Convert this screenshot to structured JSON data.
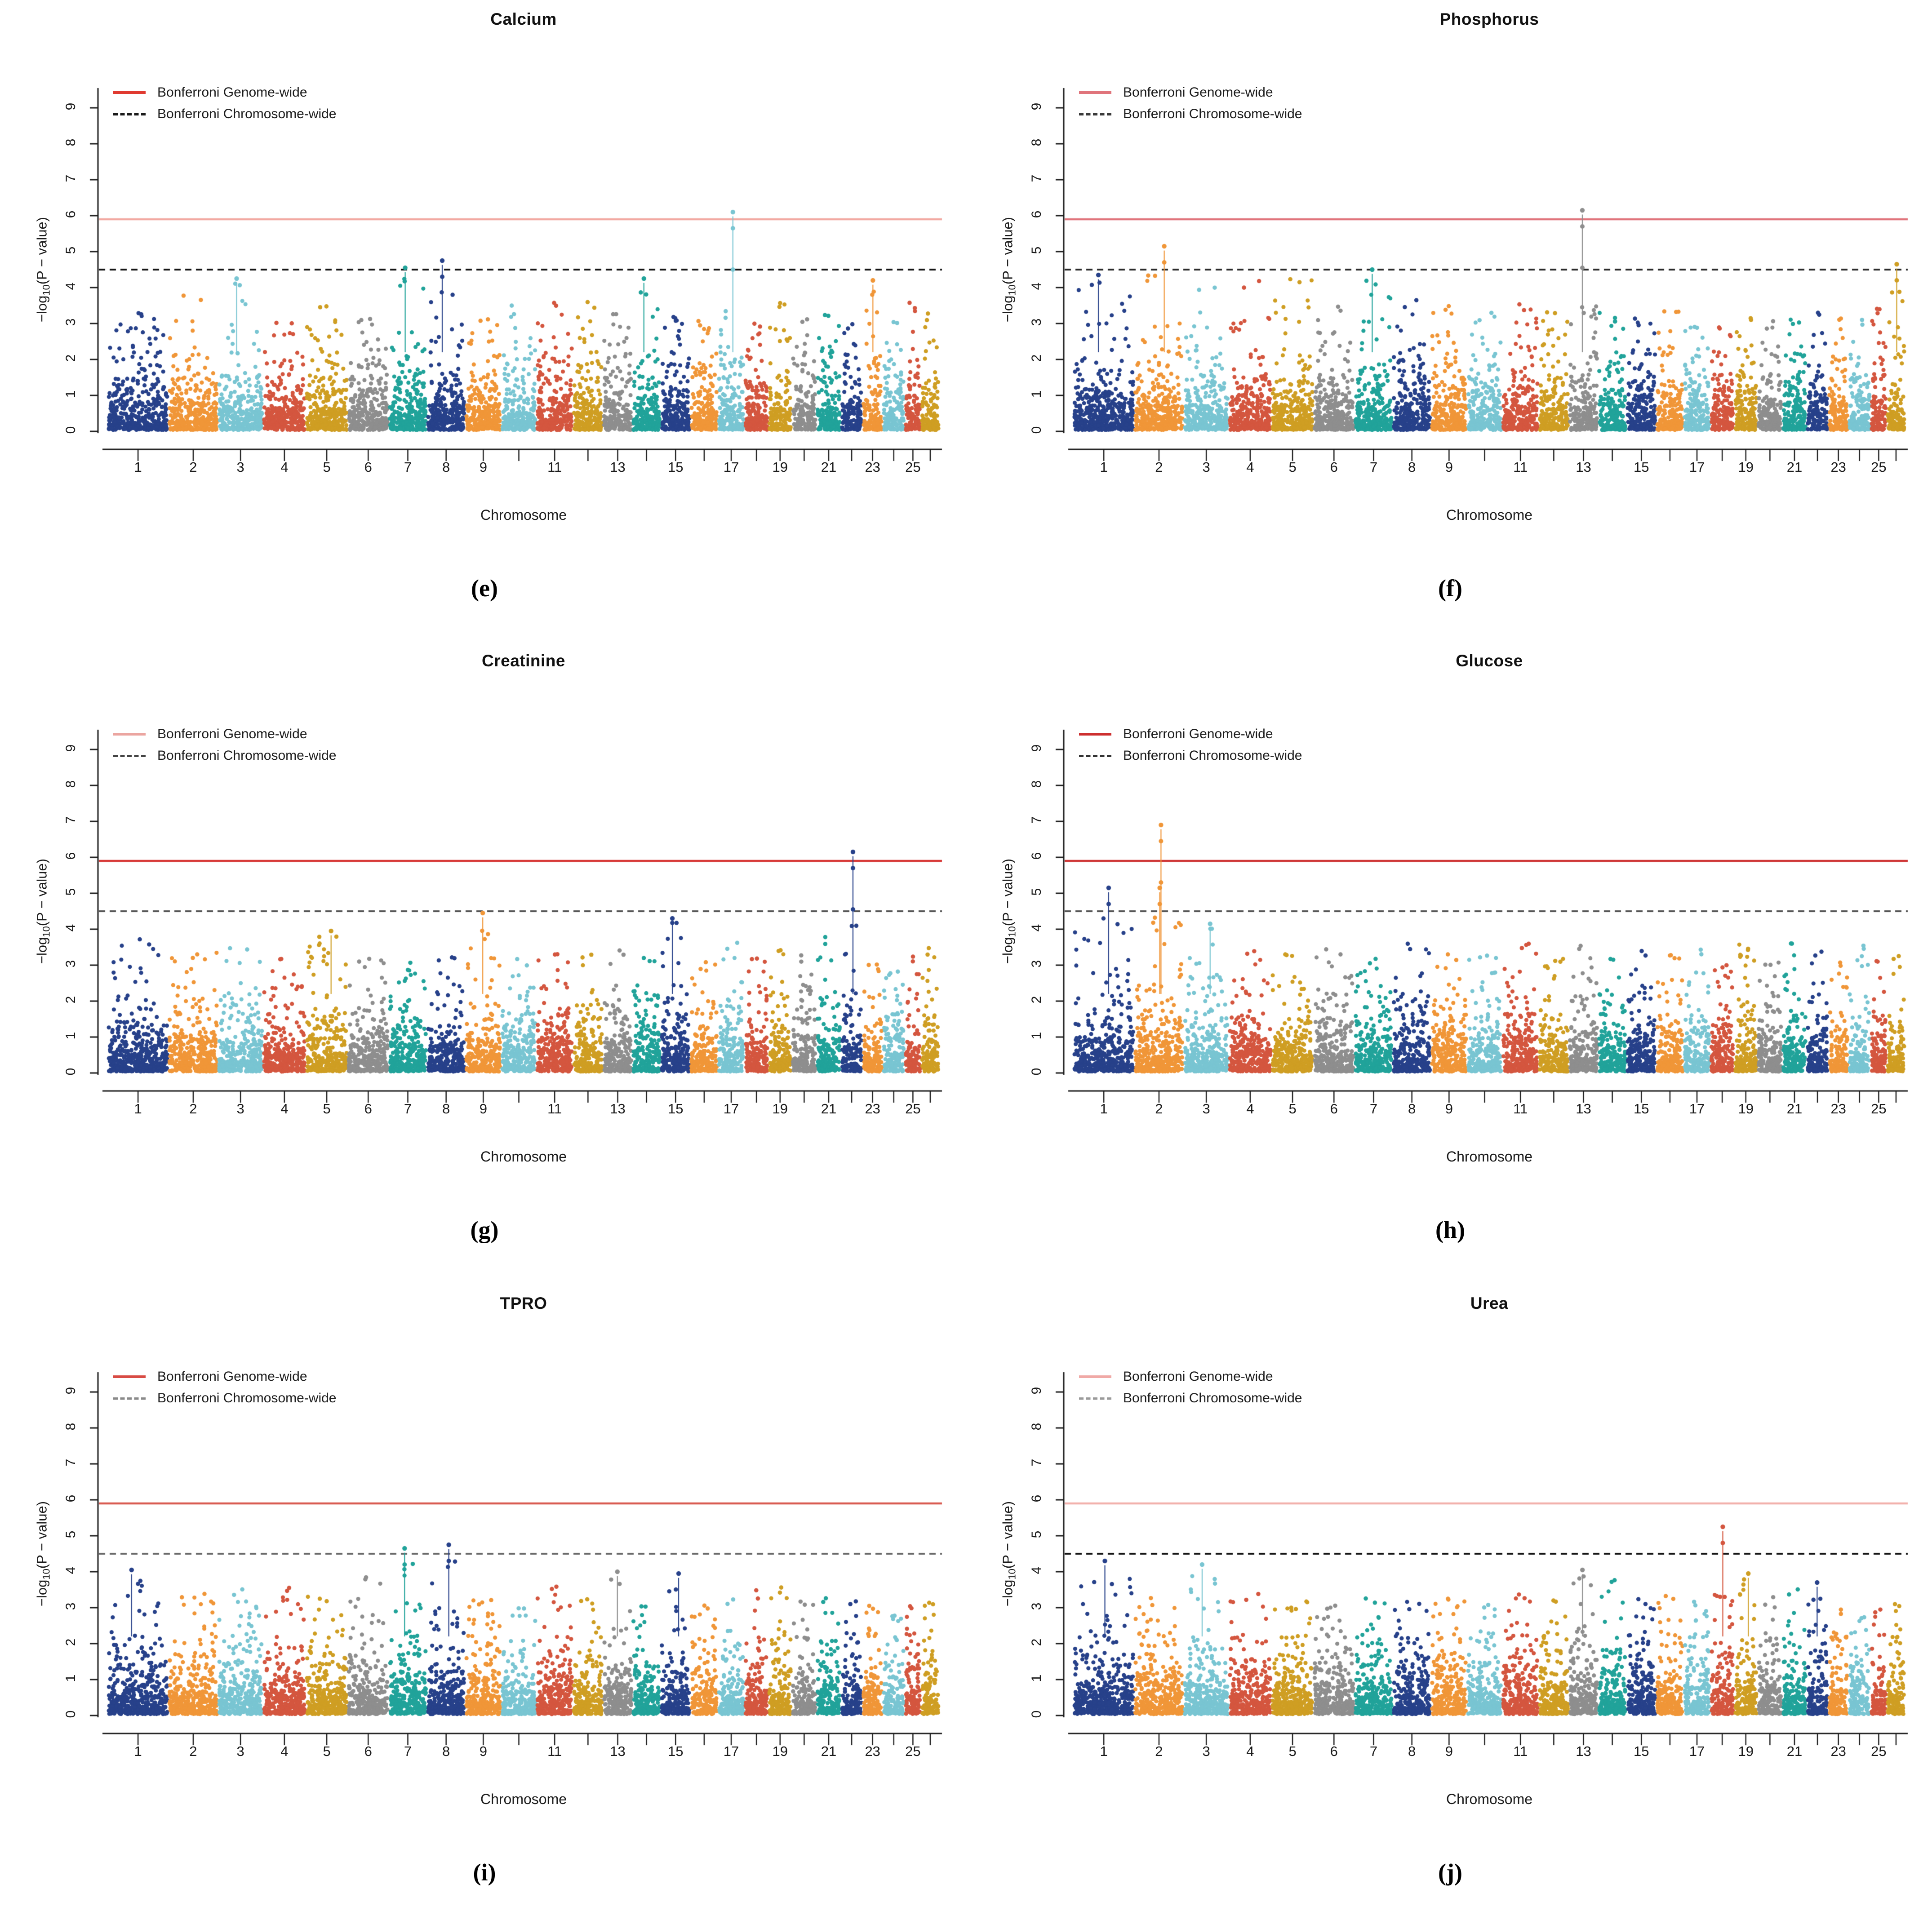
{
  "figure": {
    "legend": {
      "genome_label": "Bonferroni Genome-wide",
      "chromosome_label": "Bonferroni Chromosome-wide"
    },
    "ylabel_prefix": "−log",
    "ylabel_sub": "10",
    "ylabel_suffix": "(P − value)",
    "xlabel": "Chromosome",
    "ytick_labels": [
      "0",
      "1",
      "2",
      "3",
      "4",
      "5",
      "6",
      "7",
      "8",
      "9"
    ],
    "xtick_values": [
      1,
      2,
      3,
      4,
      5,
      6,
      7,
      8,
      9,
      11,
      13,
      15,
      17,
      19,
      21,
      23,
      25
    ],
    "chrom_palette": [
      "#27418a",
      "#f09638",
      "#79c5d2",
      "#d4563f",
      "#cf9e23",
      "#8e8e8e",
      "#21a39a"
    ],
    "chrom_weights": [
      1.3,
      1.05,
      0.95,
      0.9,
      0.88,
      0.86,
      0.8,
      0.8,
      0.75,
      0.73,
      0.76,
      0.62,
      0.6,
      0.58,
      0.61,
      0.56,
      0.54,
      0.48,
      0.47,
      0.5,
      0.49,
      0.43,
      0.4,
      0.44,
      0.31,
      0.36
    ]
  },
  "plots": [
    {
      "id": "e",
      "title": "Calcium",
      "letter": "(e)"
    },
    {
      "id": "f",
      "title": "Phosphorus",
      "letter": "(f)"
    },
    {
      "id": "g",
      "title": "Creatinine",
      "letter": "(g)"
    },
    {
      "id": "h",
      "title": "Glucose",
      "letter": "(h)"
    },
    {
      "id": "i",
      "title": "TPRO",
      "letter": "(i)"
    },
    {
      "id": "j",
      "title": "Urea",
      "letter": "(j)"
    }
  ],
  "chart_data": [
    {
      "type": "scatter",
      "subtype": "manhattan",
      "title": "Calcium",
      "xlabel": "Chromosome",
      "ylabel": "-log10(P-value)",
      "ylim": [
        0,
        9.8
      ],
      "yticks": [
        0,
        1,
        2,
        3,
        4,
        5,
        6,
        7,
        8,
        9
      ],
      "n_chromosomes": 26,
      "genome_wide_threshold": 5.9,
      "chromosome_wide_threshold": 4.5,
      "line_colors": {
        "genome": "#f2a9a2",
        "chromosome": "#151515"
      },
      "legend_colors": {
        "genome": "#e03a30",
        "chromosome": "#1a1a1a"
      },
      "base_max": [
        3.4,
        3.9,
        4.2,
        3.2,
        3.5,
        3.3,
        4.3,
        4.0,
        3.3,
        3.5,
        3.7,
        3.6,
        3.4,
        4.0,
        3.3,
        3.1,
        3.4,
        3.0,
        3.6,
        3.2,
        3.3,
        3.0,
        3.9,
        3.1,
        3.6,
        3.3
      ],
      "highlights": [
        [
          3,
          4.25
        ],
        [
          7,
          4.55
        ],
        [
          8,
          4.75
        ],
        [
          14,
          4.25
        ],
        [
          17,
          6.1
        ],
        [
          23,
          4.2
        ]
      ]
    },
    {
      "type": "scatter",
      "subtype": "manhattan",
      "title": "Phosphorus",
      "xlabel": "Chromosome",
      "ylabel": "-log10(P-value)",
      "ylim": [
        0,
        9.8
      ],
      "yticks": [
        0,
        1,
        2,
        3,
        4,
        5,
        6,
        7,
        8,
        9
      ],
      "n_chromosomes": 26,
      "genome_wide_threshold": 5.9,
      "chromosome_wide_threshold": 4.5,
      "line_colors": {
        "genome": "#e0747b",
        "chromosome": "#2b2b2b"
      },
      "legend_colors": {
        "genome": "#e0747b",
        "chromosome": "#3a3a3a"
      },
      "base_max": [
        4.2,
        4.4,
        4.1,
        4.2,
        4.3,
        3.6,
        4.3,
        3.7,
        3.5,
        3.3,
        3.6,
        3.4,
        3.5,
        3.3,
        3.2,
        3.4,
        3.1,
        3.0,
        3.3,
        3.1,
        3.2,
        3.4,
        3.2,
        3.1,
        3.5,
        4.1
      ],
      "highlights": [
        [
          1,
          4.35
        ],
        [
          2,
          5.15
        ],
        [
          7,
          4.5
        ],
        [
          13,
          6.15
        ],
        [
          26,
          4.65
        ]
      ]
    },
    {
      "type": "scatter",
      "subtype": "manhattan",
      "title": "Creatinine",
      "xlabel": "Chromosome",
      "ylabel": "-log10(P-value)",
      "ylim": [
        0,
        9.8
      ],
      "yticks": [
        0,
        1,
        2,
        3,
        4,
        5,
        6,
        7,
        8,
        9
      ],
      "n_chromosomes": 26,
      "genome_wide_threshold": 5.9,
      "chromosome_wide_threshold": 4.5,
      "line_colors": {
        "genome": "#d63230",
        "chromosome": "#555555"
      },
      "legend_colors": {
        "genome": "#eba5a0",
        "chromosome": "#444444"
      },
      "base_max": [
        3.8,
        3.4,
        3.5,
        3.2,
        3.9,
        3.3,
        3.1,
        3.4,
        4.1,
        3.2,
        3.4,
        3.3,
        3.5,
        3.3,
        4.2,
        3.1,
        3.7,
        3.4,
        3.6,
        3.3,
        3.8,
        4.2,
        3.2,
        3.0,
        3.3,
        3.5
      ],
      "highlights": [
        [
          9,
          4.45
        ],
        [
          15,
          4.3
        ],
        [
          22,
          6.15
        ],
        [
          5,
          3.95
        ]
      ]
    },
    {
      "type": "scatter",
      "subtype": "manhattan",
      "title": "Glucose",
      "xlabel": "Chromosome",
      "ylabel": "-log10(P-value)",
      "ylim": [
        0,
        9.8
      ],
      "yticks": [
        0,
        1,
        2,
        3,
        4,
        5,
        6,
        7,
        8,
        9
      ],
      "n_chromosomes": 26,
      "genome_wide_threshold": 5.9,
      "chromosome_wide_threshold": 4.5,
      "line_colors": {
        "genome": "#cd2f2f",
        "chromosome": "#555555"
      },
      "legend_colors": {
        "genome": "#cd2f2f",
        "chromosome": "#333333"
      },
      "base_max": [
        4.3,
        4.4,
        4.2,
        3.4,
        3.3,
        3.5,
        3.2,
        3.6,
        3.3,
        3.4,
        3.6,
        3.3,
        3.7,
        3.2,
        3.4,
        3.3,
        3.5,
        3.1,
        3.6,
        3.2,
        3.8,
        3.5,
        3.2,
        3.6,
        3.3,
        3.4
      ],
      "highlights": [
        [
          1,
          5.15
        ],
        [
          2,
          6.9
        ],
        [
          2,
          5.15
        ],
        [
          3,
          4.15
        ]
      ]
    },
    {
      "type": "scatter",
      "subtype": "manhattan",
      "title": "TPRO",
      "xlabel": "Chromosome",
      "ylabel": "-log10(P-value)",
      "ylim": [
        0,
        9.8
      ],
      "yticks": [
        0,
        1,
        2,
        3,
        4,
        5,
        6,
        7,
        8,
        9
      ],
      "n_chromosomes": 26,
      "genome_wide_threshold": 5.9,
      "chromosome_wide_threshold": 4.5,
      "line_colors": {
        "genome": "#d95c52",
        "chromosome": "#6a6a6a"
      },
      "legend_colors": {
        "genome": "#d84b44",
        "chromosome": "#8a8a8a"
      },
      "base_max": [
        3.9,
        3.5,
        3.6,
        3.7,
        3.4,
        3.9,
        4.3,
        4.3,
        3.3,
        3.2,
        3.6,
        3.3,
        3.8,
        3.2,
        3.7,
        3.1,
        3.3,
        3.5,
        3.6,
        3.2,
        3.4,
        3.3,
        3.1,
        3.0,
        3.1,
        3.3
      ],
      "highlights": [
        [
          1,
          4.05
        ],
        [
          7,
          4.65
        ],
        [
          8,
          4.75
        ],
        [
          13,
          4.0
        ],
        [
          15,
          3.95
        ]
      ]
    },
    {
      "type": "scatter",
      "subtype": "manhattan",
      "title": "Urea",
      "xlabel": "Chromosome",
      "ylabel": "-log10(P-value)",
      "ylim": [
        0,
        9.8
      ],
      "yticks": [
        0,
        1,
        2,
        3,
        4,
        5,
        6,
        7,
        8,
        9
      ],
      "n_chromosomes": 26,
      "genome_wide_threshold": 5.9,
      "chromosome_wide_threshold": 4.5,
      "line_colors": {
        "genome": "#f2b1ac",
        "chromosome": "#151515"
      },
      "legend_colors": {
        "genome": "#f0a9a6",
        "chromosome": "#9a9a9a"
      },
      "base_max": [
        3.9,
        3.3,
        3.9,
        3.4,
        3.2,
        3.1,
        3.3,
        3.2,
        3.4,
        3.1,
        3.5,
        3.2,
        3.9,
        3.8,
        3.3,
        3.4,
        3.2,
        3.4,
        3.8,
        3.3,
        3.6,
        3.4,
        3.0,
        2.9,
        3.0,
        3.1
      ],
      "highlights": [
        [
          1,
          4.3
        ],
        [
          3,
          4.2
        ],
        [
          13,
          4.05
        ],
        [
          18,
          5.25
        ],
        [
          19,
          3.95
        ],
        [
          22,
          3.7
        ]
      ]
    }
  ]
}
